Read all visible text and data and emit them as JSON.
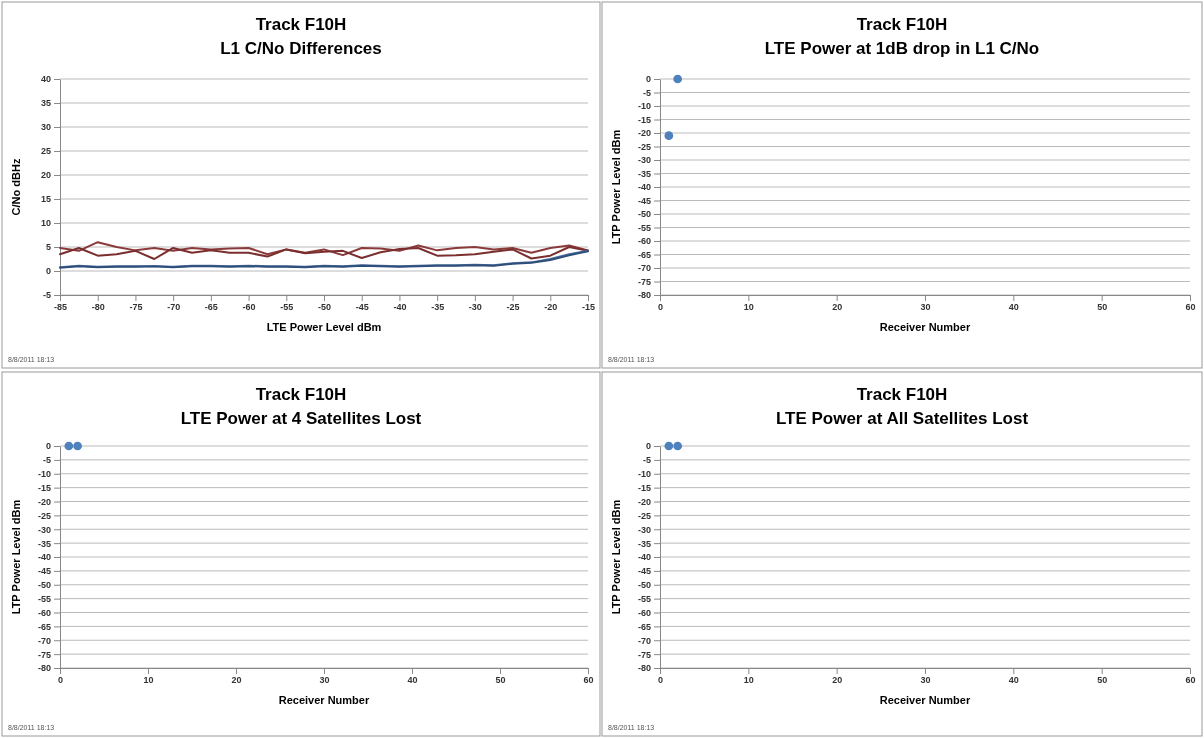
{
  "chart_data": [
    {
      "type": "line",
      "title": "Track F10H",
      "subtitle": "L1 C/No Differences",
      "xlabel": "LTE Power Level dBm",
      "ylabel": "C/No dBHz",
      "xlim": [
        -85,
        -15
      ],
      "xticks": [
        -85,
        -80,
        -75,
        -70,
        -65,
        -60,
        -55,
        -50,
        -45,
        -40,
        -35,
        -30,
        -25,
        -20,
        -15
      ],
      "ylim": [
        -5,
        40
      ],
      "yticks": [
        -5,
        0,
        5,
        10,
        15,
        20,
        25,
        30,
        35,
        40
      ],
      "grid": "y",
      "marker": "none",
      "annotations": [
        "8/8/2011 18:13"
      ],
      "x": [
        -85,
        -82.5,
        -80,
        -77.5,
        -75,
        -72.5,
        -70,
        -67.5,
        -65,
        -62.5,
        -60,
        -57.5,
        -55,
        -52.5,
        -50,
        -47.5,
        -45,
        -42.5,
        -40,
        -37.5,
        -35,
        -32.5,
        -30,
        -27.5,
        -25,
        -22.5,
        -20,
        -17.5,
        -15
      ],
      "series": [
        {
          "color": "#8b3a3a",
          "values": [
            4.8,
            4.2,
            6.0,
            5.0,
            4.3,
            4.8,
            4.2,
            4.8,
            4.5,
            4.7,
            4.8,
            3.5,
            4.5,
            3.8,
            4.5,
            3.3,
            4.8,
            4.7,
            4.2,
            5.3,
            4.3,
            4.8,
            5.0,
            4.5,
            4.8,
            3.8,
            4.8,
            5.3,
            4.3
          ]
        },
        {
          "color": "#7a2e2e",
          "values": [
            3.5,
            4.8,
            3.2,
            3.5,
            4.2,
            2.5,
            4.8,
            3.8,
            4.3,
            3.8,
            3.8,
            3.0,
            4.5,
            3.7,
            4.0,
            4.2,
            2.7,
            3.9,
            4.6,
            4.8,
            3.2,
            3.3,
            3.5,
            4.0,
            4.5,
            2.6,
            3.2,
            5.0,
            4.2
          ]
        },
        {
          "color": "#4a6f9c",
          "values": [
            0.8,
            1.1,
            0.9,
            1.0,
            1.0,
            1.0,
            0.9,
            1.1,
            1.1,
            1.0,
            1.1,
            1.0,
            1.0,
            0.9,
            1.1,
            1.0,
            1.2,
            1.1,
            1.0,
            1.1,
            1.2,
            1.2,
            1.3,
            1.2,
            1.6,
            1.8,
            2.5,
            3.5,
            4.2
          ]
        },
        {
          "color": "#2f4f7a",
          "values": [
            0.7,
            1.0,
            0.8,
            0.9,
            0.9,
            1.0,
            0.8,
            1.0,
            1.0,
            0.9,
            1.0,
            0.9,
            0.9,
            0.8,
            1.0,
            0.9,
            1.1,
            1.0,
            0.9,
            1.0,
            1.1,
            1.1,
            1.2,
            1.1,
            1.5,
            1.7,
            2.3,
            3.3,
            4.1
          ]
        }
      ]
    },
    {
      "type": "scatter",
      "title": "Track F10H",
      "subtitle": "LTE Power at 1dB drop in L1 C/No",
      "xlabel": "Receiver Number",
      "ylabel": "LTP Power Level dBm",
      "xlim": [
        0,
        60
      ],
      "xticks": [
        0,
        10,
        20,
        30,
        40,
        50,
        60
      ],
      "ylim": [
        -80,
        0
      ],
      "yticks": [
        -80,
        -75,
        -70,
        -65,
        -60,
        -55,
        -50,
        -45,
        -40,
        -35,
        -30,
        -25,
        -20,
        -15,
        -10,
        -5,
        0
      ],
      "grid": "y",
      "marker": "circle",
      "annotations": [
        "8/8/2011 18:13"
      ],
      "x": [
        1,
        2
      ],
      "series": [
        {
          "color": "#4f81bd",
          "values": [
            -21,
            0
          ]
        }
      ]
    },
    {
      "type": "scatter",
      "title": "Track F10H",
      "subtitle": "LTE Power at 4 Satellites Lost",
      "xlabel": "Receiver Number",
      "ylabel": "LTP Power Level dBm",
      "xlim": [
        0,
        60
      ],
      "xticks": [
        0,
        10,
        20,
        30,
        40,
        50,
        60
      ],
      "ylim": [
        -80,
        0
      ],
      "yticks": [
        -80,
        -75,
        -70,
        -65,
        -60,
        -55,
        -50,
        -45,
        -40,
        -35,
        -30,
        -25,
        -20,
        -15,
        -10,
        -5,
        0
      ],
      "grid": "y",
      "marker": "circle",
      "annotations": [
        "8/8/2011 18:13"
      ],
      "x": [
        1,
        2
      ],
      "series": [
        {
          "color": "#4f81bd",
          "values": [
            0,
            0
          ]
        }
      ]
    },
    {
      "type": "scatter",
      "title": "Track F10H",
      "subtitle": "LTE Power at All Satellites Lost",
      "xlabel": "Receiver Number",
      "ylabel": "LTP Power Level dBm",
      "xlim": [
        0,
        60
      ],
      "xticks": [
        0,
        10,
        20,
        30,
        40,
        50,
        60
      ],
      "ylim": [
        -80,
        0
      ],
      "yticks": [
        -80,
        -75,
        -70,
        -65,
        -60,
        -55,
        -50,
        -45,
        -40,
        -35,
        -30,
        -25,
        -20,
        -15,
        -10,
        -5,
        0
      ],
      "grid": "y",
      "marker": "circle",
      "annotations": [
        "8/8/2011 18:13"
      ],
      "x": [
        1,
        2
      ],
      "series": [
        {
          "color": "#4f81bd",
          "values": [
            0,
            0
          ]
        }
      ]
    }
  ]
}
